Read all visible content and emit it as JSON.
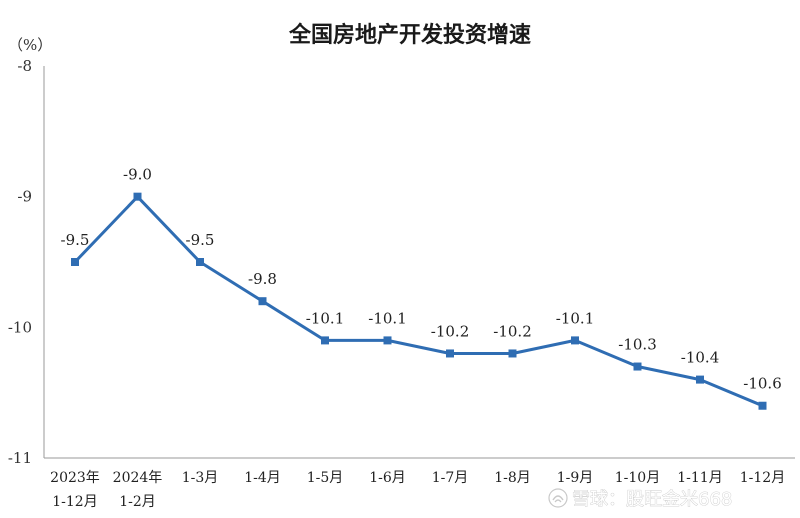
{
  "chart_data": {
    "type": "line",
    "title": "全国房地产开发投资增速",
    "unit_label": "（%）",
    "ylim": [
      -11,
      -8
    ],
    "y_ticks": [
      "-8",
      "-9",
      "-10",
      "-11"
    ],
    "categories": [
      [
        "2023年",
        "1-12月"
      ],
      [
        "2024年",
        "1-2月"
      ],
      [
        "1-3月"
      ],
      [
        "1-4月"
      ],
      [
        "1-5月"
      ],
      [
        "1-6月"
      ],
      [
        "1-7月"
      ],
      [
        "1-8月"
      ],
      [
        "1-9月"
      ],
      [
        "1-10月"
      ],
      [
        "1-11月"
      ],
      [
        "1-12月"
      ]
    ],
    "series": [
      {
        "values": [
          -9.5,
          -9.0,
          -9.5,
          -9.8,
          -10.1,
          -10.1,
          -10.2,
          -10.2,
          -10.1,
          -10.3,
          -10.4,
          -10.6
        ]
      }
    ],
    "data_labels": [
      "-9.5",
      "-9.0",
      "-9.5",
      "-9.8",
      "-10.1",
      "-10.1",
      "-10.2",
      "-10.2",
      "-10.1",
      "-10.3",
      "-10.4",
      "-10.6"
    ],
    "line_color": "#2f6db3",
    "grid": false
  },
  "watermark": {
    "icon": "snowball-logo-icon",
    "text": "雪球：股旺金米668"
  }
}
